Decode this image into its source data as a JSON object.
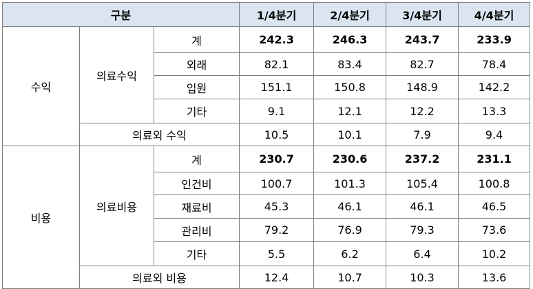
{
  "header": {
    "category": "구분",
    "q1": "1/4분기",
    "q2": "2/4분기",
    "q3": "3/4분기",
    "q4": "4/4분기"
  },
  "revenue": {
    "label": "수익",
    "medical": {
      "label": "의료수익",
      "rows": [
        {
          "label": "계",
          "values": [
            "242.3",
            "246.3",
            "243.7",
            "233.9"
          ],
          "bold": true
        },
        {
          "label": "외래",
          "values": [
            "82.1",
            "83.4",
            "82.7",
            "78.4"
          ]
        },
        {
          "label": "입원",
          "values": [
            "151.1",
            "150.8",
            "148.9",
            "142.2"
          ]
        },
        {
          "label": "기타",
          "values": [
            "9.1",
            "12.1",
            "12.2",
            "13.3"
          ]
        }
      ]
    },
    "nonmedical": {
      "label": "의료외 수익",
      "values": [
        "10.5",
        "10.1",
        "7.9",
        "9.4"
      ]
    }
  },
  "expense": {
    "label": "비용",
    "medical": {
      "label": "의료비용",
      "rows": [
        {
          "label": "계",
          "values": [
            "230.7",
            "230.6",
            "237.2",
            "231.1"
          ],
          "bold": true
        },
        {
          "label": "인건비",
          "values": [
            "100.7",
            "101.3",
            "105.4",
            "100.8"
          ]
        },
        {
          "label": "재료비",
          "values": [
            "45.3",
            "46.1",
            "46.1",
            "46.5"
          ]
        },
        {
          "label": "관리비",
          "values": [
            "79.2",
            "76.9",
            "79.3",
            "73.6"
          ]
        },
        {
          "label": "기타",
          "values": [
            "5.5",
            "6.2",
            "6.4",
            "10.2"
          ]
        }
      ]
    },
    "nonmedical": {
      "label": "의료외 비용",
      "values": [
        "12.4",
        "10.7",
        "10.3",
        "13.6"
      ]
    }
  }
}
